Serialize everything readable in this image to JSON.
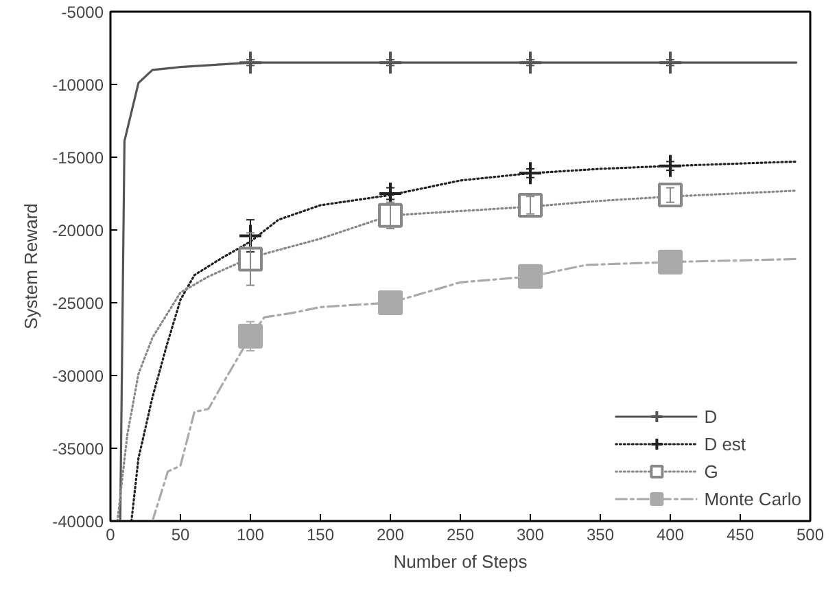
{
  "chart_data": {
    "type": "line",
    "xlabel": "Number of Steps",
    "ylabel": "System Reward",
    "xlim": [
      0,
      500
    ],
    "ylim": [
      -40000,
      -5000
    ],
    "xticks": [
      0,
      50,
      100,
      150,
      200,
      250,
      300,
      350,
      400,
      450,
      500
    ],
    "yticks": [
      -40000,
      -35000,
      -30000,
      -25000,
      -20000,
      -15000,
      -10000,
      -5000
    ],
    "legend": "bottom right",
    "grid": false,
    "series": [
      {
        "name": "D",
        "color": "#555555",
        "line_style": "solid",
        "x": [
          7,
          10,
          20,
          30,
          50,
          100,
          200,
          300,
          400,
          490
        ],
        "values": [
          -40000,
          -13900,
          -9900,
          -9000,
          -8800,
          -8500,
          -8500,
          -8500,
          -8500,
          -8500
        ]
      },
      {
        "type": "scatter",
        "color": "#555555",
        "marker": "cross",
        "x": [
          100,
          200,
          300,
          400
        ],
        "values": [
          -8500,
          -8500,
          -8500,
          -8500
        ],
        "errors": [
          200,
          200,
          200,
          200
        ]
      },
      {
        "name": "D est",
        "color": "#222222",
        "line_style": "dotted",
        "x": [
          15,
          20,
          30,
          40,
          50,
          60,
          80,
          100,
          120,
          150,
          200,
          250,
          300,
          350,
          400,
          490
        ],
        "values": [
          -40000,
          -35700,
          -31500,
          -28000,
          -24800,
          -23100,
          -21900,
          -20800,
          -19300,
          -18300,
          -17600,
          -16600,
          -16100,
          -15800,
          -15600,
          -15300
        ]
      },
      {
        "type": "scatter",
        "color": "#222222",
        "marker": "cross",
        "x": [
          100,
          200,
          300,
          400
        ],
        "values": [
          -20400,
          -17500,
          -16100,
          -15600
        ],
        "errors": [
          1100,
          400,
          300,
          300
        ]
      },
      {
        "name": "G",
        "color": "#888888",
        "line_style": "dotted",
        "x": [
          5,
          12,
          20,
          30,
          50,
          70,
          100,
          150,
          200,
          250,
          300,
          350,
          400,
          490
        ],
        "values": [
          -40000,
          -34100,
          -29900,
          -27400,
          -24300,
          -23200,
          -21900,
          -20600,
          -19000,
          -18700,
          -18400,
          -18000,
          -17700,
          -17300
        ]
      },
      {
        "type": "scatter",
        "color": "#ffffff",
        "marker": "square",
        "x": [
          100,
          200,
          300,
          400
        ],
        "values": [
          -22000,
          -19000,
          -18300,
          -17600
        ],
        "errors": [
          1800,
          900,
          600,
          500
        ]
      },
      {
        "name": "Monte Carlo",
        "color": "#aaaaaa",
        "line_style": "dashed",
        "x": [
          30,
          41,
          50,
          60,
          70,
          80,
          100,
          110,
          130,
          150,
          200,
          250,
          300,
          340,
          400,
          490
        ],
        "values": [
          -40000,
          -36600,
          -36200,
          -32500,
          -32300,
          -30600,
          -27300,
          -26000,
          -25700,
          -25300,
          -25000,
          -23600,
          -23200,
          -22400,
          -22200,
          -22000
        ]
      },
      {
        "type": "scatter",
        "color": "#aaaaaa",
        "marker": "square",
        "x": [
          100,
          200,
          300,
          400
        ],
        "values": [
          -27300,
          -25000,
          -23200,
          -22200
        ],
        "errors": [
          1000,
          300,
          300,
          300
        ]
      }
    ]
  }
}
